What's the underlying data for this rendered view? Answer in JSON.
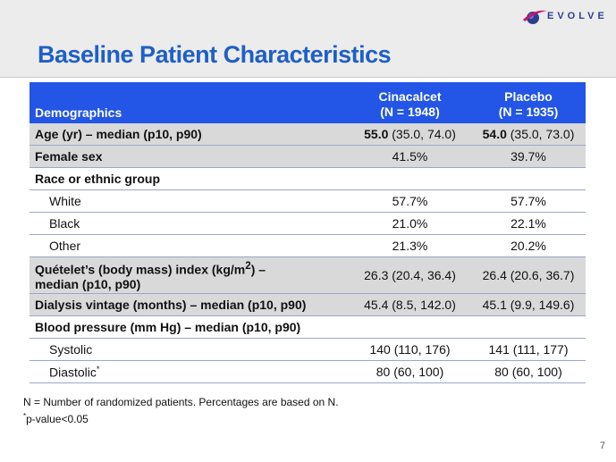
{
  "logo": {
    "text": "EVOLVE",
    "mark": "globe-swoosh-icon"
  },
  "title": "Baseline Patient Characteristics",
  "table": {
    "header": {
      "col1": "Demographics",
      "col2_line1": "Cinacalcet",
      "col2_line2": "(N = 1948)",
      "col3_line1": "Placebo",
      "col3_line2": "(N = 1935)"
    },
    "rows": {
      "age": {
        "label": "Age (yr) – median (p10, p90)",
        "c_bold": "55.0",
        "c_rest": " (35.0, 74.0)",
        "p_bold": "54.0",
        "p_rest": " (35.0, 73.0)"
      },
      "female": {
        "label": "Female sex",
        "c": "41.5%",
        "p": "39.7%"
      },
      "race": {
        "label": "Race or ethnic group"
      },
      "white": {
        "label": "White",
        "c": "57.7%",
        "p": "57.7%"
      },
      "black": {
        "label": "Black",
        "c": "21.0%",
        "p": "22.1%"
      },
      "other": {
        "label": "Other",
        "c": "21.3%",
        "p": "20.2%"
      },
      "bmi": {
        "label_a": "Quételet’s (body mass) index (kg/m",
        "label_sup": "2",
        "label_b": ") –",
        "label_c": "median (p10, p90)",
        "c": "26.3 (20.4, 36.4)",
        "p": "26.4 (20.6, 36.7)"
      },
      "dialysis": {
        "label": "Dialysis vintage (months) – median (p10, p90)",
        "c": "45.4 (8.5, 142.0)",
        "p": "45.1 (9.9, 149.6)"
      },
      "bp": {
        "label": "Blood pressure (mm Hg) – median (p10, p90)"
      },
      "systolic": {
        "label": "Systolic",
        "c": "140 (110, 176)",
        "p": "141 (111, 177)"
      },
      "diastolic": {
        "label": "Diastolic",
        "marker": "*",
        "c": "80 (60, 100)",
        "p": "80 (60, 100)"
      }
    }
  },
  "footnotes": {
    "line1": "N = Number of randomized patients.  Percentages are based on N.",
    "line2_marker": "*",
    "line2": "p-value<0.05"
  },
  "page_number": "7"
}
